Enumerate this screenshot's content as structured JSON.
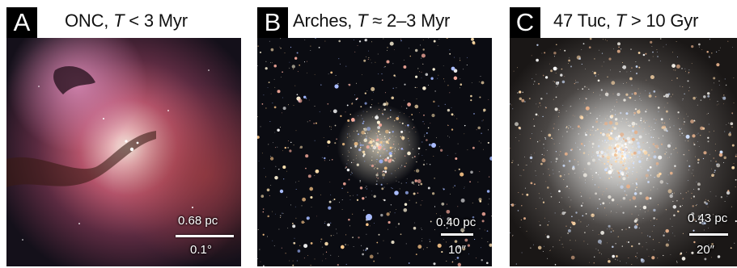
{
  "panels": [
    {
      "letter": "A",
      "title_prefix": "ONC, ",
      "title_var": "T",
      "title_suffix": " < 3 Myr",
      "scale_top": "0.68 pc",
      "scale_bottom": "0.1°",
      "image_subject": "orion-nebula"
    },
    {
      "letter": "B",
      "title_prefix": "Arches, ",
      "title_var": "T",
      "title_suffix": " ≈ 2–3 Myr",
      "scale_top": "0.40 pc",
      "scale_bottom": "10″",
      "image_subject": "arches-star-cluster"
    },
    {
      "letter": "C",
      "title_prefix": "47 Tuc, ",
      "title_var": "T",
      "title_suffix": " > 10 Gyr",
      "scale_top": "0.43 pc",
      "scale_bottom": "20″",
      "image_subject": "globular-cluster-47-tuc"
    }
  ],
  "colors": {
    "badge_bg": "#000000",
    "badge_text": "#ffffff",
    "nebula_pink": "#c8607a",
    "nebula_core": "#f4eadc",
    "sky_dark": "#0b0d12",
    "star_blue": "#7c9cff",
    "star_warm": "#ffc98a"
  }
}
